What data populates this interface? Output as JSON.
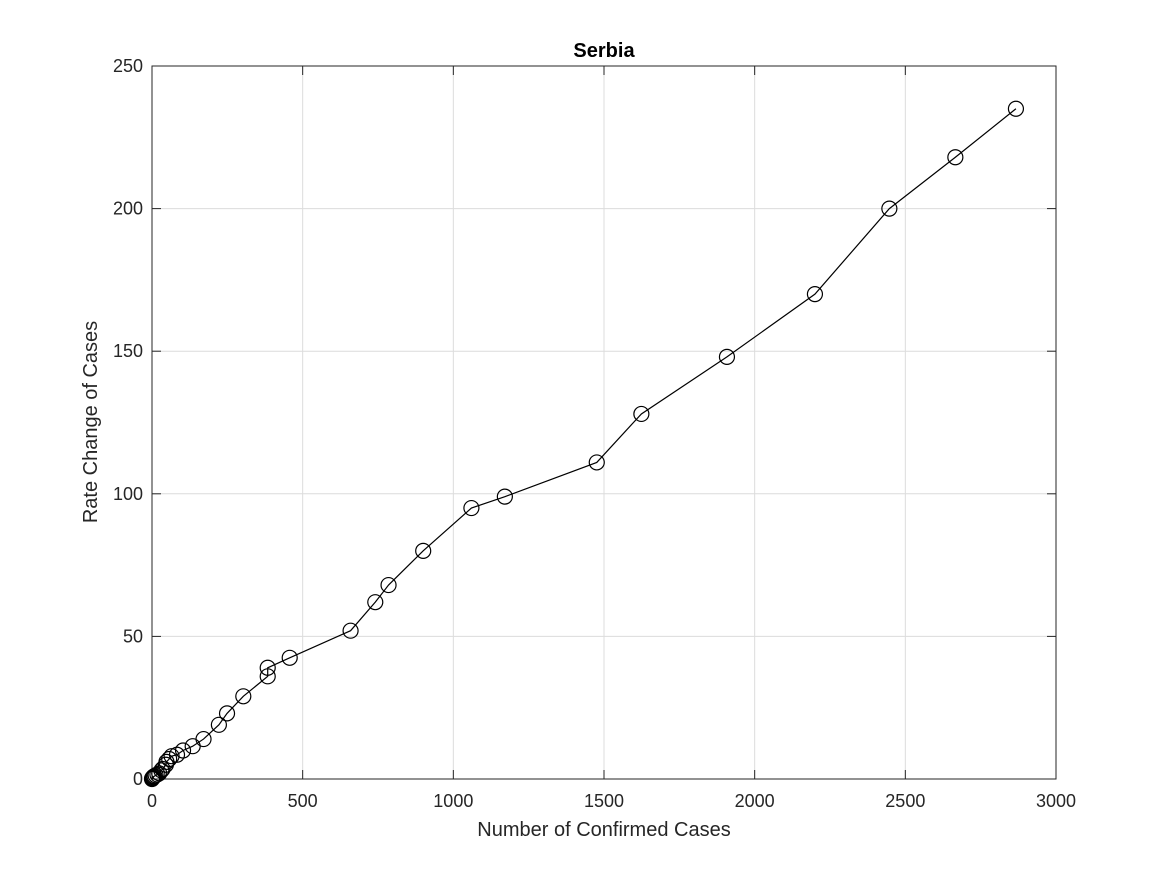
{
  "chart_data": {
    "type": "line",
    "title": "Serbia",
    "xlabel": "Number of Confirmed Cases",
    "ylabel": "Rate Change of Cases",
    "xlim": [
      0,
      3000
    ],
    "ylim": [
      0,
      250
    ],
    "xticks": [
      0,
      500,
      1000,
      1500,
      2000,
      2500,
      3000
    ],
    "yticks": [
      0,
      50,
      100,
      150,
      200,
      250
    ],
    "grid": true,
    "marker": "circle",
    "line_color": "#000000",
    "series": [
      {
        "x": [
          0,
          1,
          3,
          5,
          8,
          12,
          18,
          24,
          31,
          35,
          46,
          48,
          57,
          65,
          83,
          103,
          135,
          171,
          222,
          249,
          303,
          384,
          384,
          457,
          659,
          741,
          785,
          900,
          1060,
          1171,
          1476,
          1624,
          1908,
          2200,
          2447,
          2666,
          2867
        ],
        "y": [
          0,
          0.3,
          0.5,
          0.8,
          1,
          1.3,
          1.6,
          2,
          3,
          3.5,
          5,
          6,
          7,
          8,
          8.5,
          10,
          11.5,
          14,
          19,
          23,
          29,
          36,
          39,
          42.5,
          52,
          62,
          68,
          80,
          95,
          99,
          111,
          128,
          148,
          170,
          200,
          218,
          235
        ]
      }
    ]
  }
}
